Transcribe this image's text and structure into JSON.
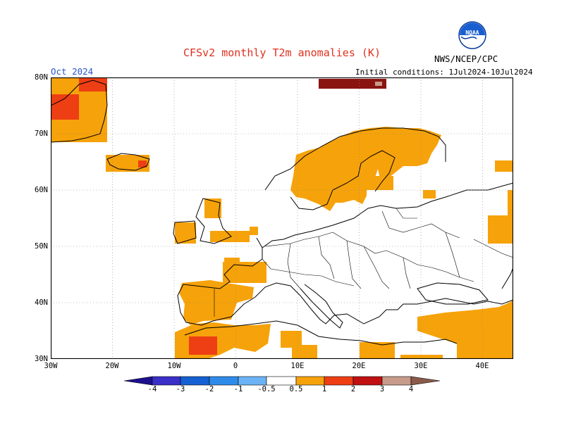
{
  "title": "CFSv2 monthly T2m anomalies (K)",
  "valid_month": "Oct 2024",
  "agency": "NWS/NCEP/CPC",
  "initial_conditions": "Initial conditions: 1Jul2024-10Jul2024",
  "logo_text": "NOAA",
  "map": {
    "lat_labels": [
      "80N",
      "70N",
      "60N",
      "50N",
      "40N",
      "30N"
    ],
    "lon_labels": [
      "30W",
      "20W",
      "10W",
      "0",
      "10E",
      "20E",
      "30E",
      "40E"
    ]
  },
  "colorbar": {
    "labels": [
      "-4",
      "-3",
      "-2",
      "-1",
      "-0.5",
      "0.5",
      "1",
      "2",
      "3",
      "4"
    ],
    "colors": [
      "#1e0f8f",
      "#3a2fc7",
      "#1560d2",
      "#2f8bea",
      "#6cb3f5",
      "#ffffff",
      "#f6a20a",
      "#ee3e14",
      "#c01010",
      "#8a1410",
      "#c79a8a",
      "#8b5a4a"
    ]
  },
  "colors": {
    "orange": "#f6a20a",
    "red": "#ee3e14",
    "darkred": "#8a1410",
    "title": "#e0301e",
    "month": "#2b55c8"
  }
}
